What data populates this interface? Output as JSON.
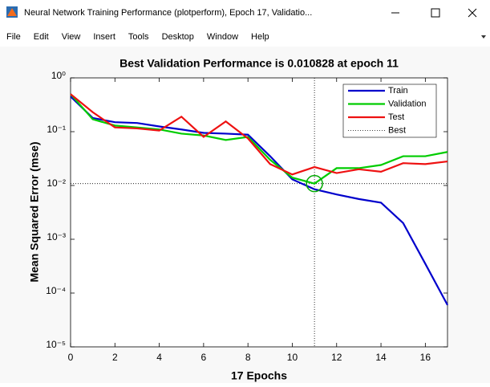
{
  "window": {
    "title": "Neural Network Training Performance (plotperform), Epoch 17, Validatio...",
    "menu": [
      "File",
      "Edit",
      "View",
      "Insert",
      "Tools",
      "Desktop",
      "Window",
      "Help"
    ]
  },
  "chart_data": {
    "type": "line",
    "title": "Best Validation Performance is 0.010828 at epoch 11",
    "xlabel": "17 Epochs",
    "ylabel": "Mean Squared Error  (mse)",
    "x": [
      0,
      1,
      2,
      3,
      4,
      5,
      6,
      7,
      8,
      9,
      10,
      11,
      12,
      13,
      14,
      15,
      16,
      17
    ],
    "series": [
      {
        "name": "Train",
        "color": "#0000cc",
        "values": [
          0.45,
          0.18,
          0.15,
          0.145,
          0.125,
          0.11,
          0.095,
          0.092,
          0.088,
          0.035,
          0.013,
          0.0085,
          0.0068,
          0.0056,
          0.0048,
          0.002,
          0.00035,
          6e-05
        ]
      },
      {
        "name": "Validation",
        "color": "#00cc00",
        "values": [
          0.5,
          0.17,
          0.13,
          0.12,
          0.11,
          0.092,
          0.085,
          0.07,
          0.08,
          0.03,
          0.014,
          0.010828,
          0.021,
          0.021,
          0.024,
          0.035,
          0.035,
          0.042
        ]
      },
      {
        "name": "Test",
        "color": "#ee1111",
        "values": [
          0.5,
          0.23,
          0.12,
          0.115,
          0.105,
          0.19,
          0.08,
          0.155,
          0.075,
          0.025,
          0.016,
          0.022,
          0.017,
          0.02,
          0.018,
          0.026,
          0.025,
          0.028
        ]
      }
    ],
    "best": {
      "name": "Best",
      "x": 11,
      "y": 0.010828,
      "color": "#00aa00"
    },
    "xlim": [
      0,
      17
    ],
    "xticks": [
      0,
      2,
      4,
      6,
      8,
      10,
      12,
      14,
      16
    ],
    "ylim": [
      1e-05,
      1
    ],
    "log_y": true,
    "yticks": [
      {
        "value": 1e-05,
        "label": "10⁻⁵"
      },
      {
        "value": 0.0001,
        "label": "10⁻⁴"
      },
      {
        "value": 0.001,
        "label": "10⁻³"
      },
      {
        "value": 0.01,
        "label": "10⁻²"
      },
      {
        "value": 0.1,
        "label": "10⁻¹"
      },
      {
        "value": 1,
        "label": "10⁰"
      }
    ],
    "legend": "upper right"
  }
}
